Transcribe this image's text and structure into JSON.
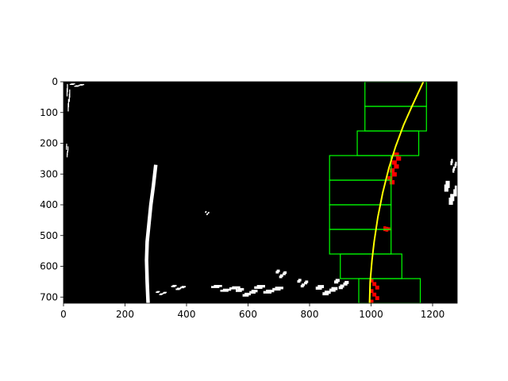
{
  "chart_data": {
    "type": "image",
    "title": "",
    "xlabel": "",
    "ylabel": "",
    "xlim": [
      0,
      1280
    ],
    "ylim": [
      720,
      0
    ],
    "x_ticks": [
      0,
      200,
      400,
      600,
      800,
      1000,
      1200
    ],
    "y_ticks": [
      0,
      100,
      200,
      300,
      400,
      500,
      600,
      700
    ],
    "background_color": "#000000",
    "pixel_color": "#ffffff",
    "lane_pixel_color": "#ff0000",
    "window_color": "#00ff00",
    "fit_color": "#ffff00",
    "windows": [
      {
        "x0": 980,
        "y0": 0,
        "x1": 1180,
        "y1": 80
      },
      {
        "x0": 980,
        "y0": 80,
        "x1": 1180,
        "y1": 160
      },
      {
        "x0": 955,
        "y0": 160,
        "x1": 1155,
        "y1": 240
      },
      {
        "x0": 865,
        "y0": 240,
        "x1": 1065,
        "y1": 320
      },
      {
        "x0": 865,
        "y0": 320,
        "x1": 1065,
        "y1": 400
      },
      {
        "x0": 865,
        "y0": 400,
        "x1": 1065,
        "y1": 480
      },
      {
        "x0": 865,
        "y0": 480,
        "x1": 1065,
        "y1": 560
      },
      {
        "x0": 900,
        "y0": 560,
        "x1": 1100,
        "y1": 640
      },
      {
        "x0": 960,
        "y0": 640,
        "x1": 1160,
        "y1": 720
      }
    ],
    "fit_line": [
      {
        "x": 995,
        "y": 720
      },
      {
        "x": 997,
        "y": 650
      },
      {
        "x": 1003,
        "y": 580
      },
      {
        "x": 1010,
        "y": 520
      },
      {
        "x": 1022,
        "y": 440
      },
      {
        "x": 1038,
        "y": 360
      },
      {
        "x": 1058,
        "y": 280
      },
      {
        "x": 1080,
        "y": 210
      },
      {
        "x": 1106,
        "y": 140
      },
      {
        "x": 1135,
        "y": 75
      },
      {
        "x": 1170,
        "y": 0
      }
    ],
    "left_lane_strip": [
      {
        "x": 275,
        "y": 720
      },
      {
        "x": 272,
        "y": 650
      },
      {
        "x": 270,
        "y": 580
      },
      {
        "x": 272,
        "y": 520
      },
      {
        "x": 278,
        "y": 460
      },
      {
        "x": 284,
        "y": 400
      },
      {
        "x": 292,
        "y": 340
      },
      {
        "x": 300,
        "y": 270
      }
    ],
    "right_lane_pixel_clusters": [
      {
        "x": 995,
        "y": 640,
        "w": 28,
        "h": 80
      },
      {
        "x": 1050,
        "y": 230,
        "w": 35,
        "h": 90
      },
      {
        "x": 1040,
        "y": 470,
        "w": 20,
        "h": 12
      }
    ],
    "noise_specks": [
      {
        "x": 10,
        "y": 5,
        "w": 10,
        "h": 80
      },
      {
        "x": 20,
        "y": 5,
        "w": 40,
        "h": 10
      },
      {
        "x": 8,
        "y": 200,
        "w": 6,
        "h": 40
      },
      {
        "x": 1238,
        "y": 320,
        "w": 40,
        "h": 70
      },
      {
        "x": 1258,
        "y": 250,
        "w": 18,
        "h": 40
      },
      {
        "x": 690,
        "y": 610,
        "w": 30,
        "h": 25
      },
      {
        "x": 760,
        "y": 640,
        "w": 30,
        "h": 25
      },
      {
        "x": 820,
        "y": 660,
        "w": 60,
        "h": 30
      },
      {
        "x": 880,
        "y": 640,
        "w": 40,
        "h": 30
      },
      {
        "x": 480,
        "y": 660,
        "w": 80,
        "h": 20
      },
      {
        "x": 560,
        "y": 670,
        "w": 60,
        "h": 25
      },
      {
        "x": 620,
        "y": 660,
        "w": 80,
        "h": 25
      },
      {
        "x": 350,
        "y": 660,
        "w": 40,
        "h": 15
      },
      {
        "x": 300,
        "y": 680,
        "w": 30,
        "h": 12
      },
      {
        "x": 460,
        "y": 420,
        "w": 12,
        "h": 12
      }
    ]
  }
}
